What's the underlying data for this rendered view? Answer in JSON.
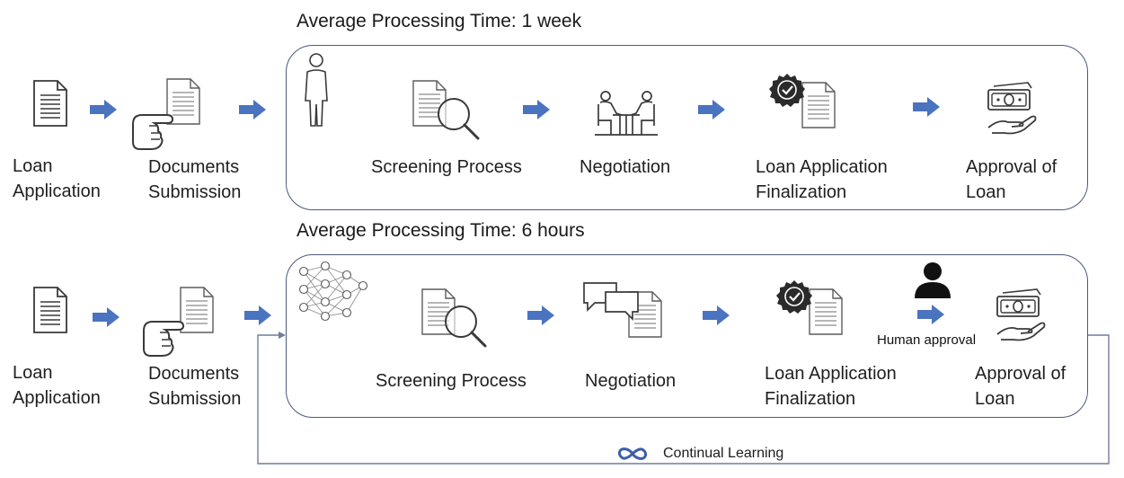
{
  "top_flow": {
    "title": "Average Processing Time: 1 week",
    "loan_application": [
      "Loan",
      "Application"
    ],
    "documents_submission": [
      "Documents",
      "Submission"
    ],
    "screening": "Screening Process",
    "negotiation": "Negotiation",
    "finalization": [
      "Loan Application",
      "Finalization"
    ],
    "approval": [
      "Approval of",
      "Loan"
    ]
  },
  "bottom_flow": {
    "title": "Average Processing Time: 6 hours",
    "loan_application": [
      "Loan",
      "Application"
    ],
    "documents_submission": [
      "Documents",
      "Submission"
    ],
    "screening": "Screening Process",
    "negotiation": "Negotiation",
    "finalization": [
      "Loan Application",
      "Finalization"
    ],
    "human_approval": "Human approval",
    "approval": [
      "Approval of",
      "Loan"
    ],
    "feedback_loop": "Continual Learning"
  },
  "colors": {
    "arrow": "#4a73c0",
    "frame": "#4d5a78",
    "icon": "#3a3a3a"
  },
  "icons": {
    "document": "document-icon",
    "hand": "pointing-hand-icon",
    "person": "person-outline-icon",
    "magnifier": "magnifying-glass-icon",
    "meeting": "meeting-table-icon",
    "badge": "check-badge-icon",
    "money": "money-hand-icon",
    "network": "neural-network-icon",
    "chat": "chat-bubbles-icon",
    "user": "user-silhouette-icon",
    "infinity": "infinity-icon"
  }
}
